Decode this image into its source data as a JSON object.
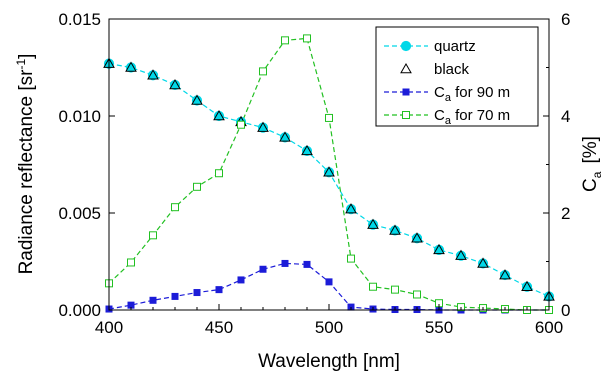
{
  "chart_data": {
    "type": "line",
    "x": [
      400,
      410,
      420,
      430,
      440,
      450,
      460,
      470,
      480,
      490,
      500,
      510,
      520,
      530,
      540,
      550,
      560,
      570,
      580,
      590,
      600
    ],
    "xlabel": "Wavelength  [nm]",
    "xlim": [
      400,
      600
    ],
    "xticks": [
      400,
      450,
      500,
      550,
      600
    ],
    "ylabel_left": "Radiance reflectance  [sr",
    "ylabel_left_sup": "-1",
    "ylabel_left_end": "]",
    "ylim_left": [
      0,
      0.015
    ],
    "yticks_left": [
      "0.000",
      "0.005",
      "0.010",
      "0.015"
    ],
    "ylabel_right_main": "C",
    "ylabel_right_sub": "a",
    "ylabel_right_unit": "[%]",
    "ylim_right": [
      0,
      6
    ],
    "yticks_right": [
      "0",
      "2",
      "4",
      "6"
    ],
    "series": [
      {
        "name": "quartz",
        "axis": "left",
        "color": "#00d8e8",
        "style": "dashed",
        "marker": "circle",
        "values": [
          0.0127,
          0.0125,
          0.0121,
          0.0116,
          0.0108,
          0.01,
          0.0097,
          0.0094,
          0.0089,
          0.0082,
          0.0071,
          0.0052,
          0.0044,
          0.0041,
          0.0037,
          0.0031,
          0.0028,
          0.0024,
          0.0018,
          0.0012,
          0.0007
        ]
      },
      {
        "name": "black",
        "axis": "left",
        "color": "#000000",
        "style": "none",
        "marker": "triangle",
        "values": [
          0.0127,
          0.0125,
          0.0121,
          0.0116,
          0.0108,
          0.01,
          0.0097,
          0.0094,
          0.0089,
          0.0082,
          0.0071,
          0.0052,
          0.0044,
          0.0041,
          0.0037,
          0.0031,
          0.0028,
          0.0024,
          0.0018,
          0.0012,
          0.0007
        ]
      },
      {
        "name_main": "C",
        "name_sub": "a",
        "name_rest": " for 90 m",
        "axis": "right",
        "color": "#1c1cd8",
        "style": "dashed",
        "marker": "square-filled",
        "values": [
          0.02,
          0.1,
          0.2,
          0.28,
          0.36,
          0.42,
          0.62,
          0.84,
          0.96,
          0.94,
          0.58,
          0.06,
          0.02,
          0.01,
          0.01,
          0.0,
          0.0,
          0.0,
          0.0,
          0.0,
          0.0
        ]
      },
      {
        "name_main": "C",
        "name_sub": "a",
        "name_rest": " for 70 m",
        "axis": "right",
        "color": "#22c022",
        "style": "dashed",
        "marker": "square-open",
        "values": [
          0.55,
          0.98,
          1.54,
          2.12,
          2.54,
          2.82,
          3.82,
          4.92,
          5.56,
          5.6,
          3.96,
          1.06,
          0.48,
          0.42,
          0.32,
          0.14,
          0.06,
          0.04,
          0.02,
          0.0,
          0.0
        ]
      }
    ],
    "legend_position": "top-right",
    "grid": false
  }
}
